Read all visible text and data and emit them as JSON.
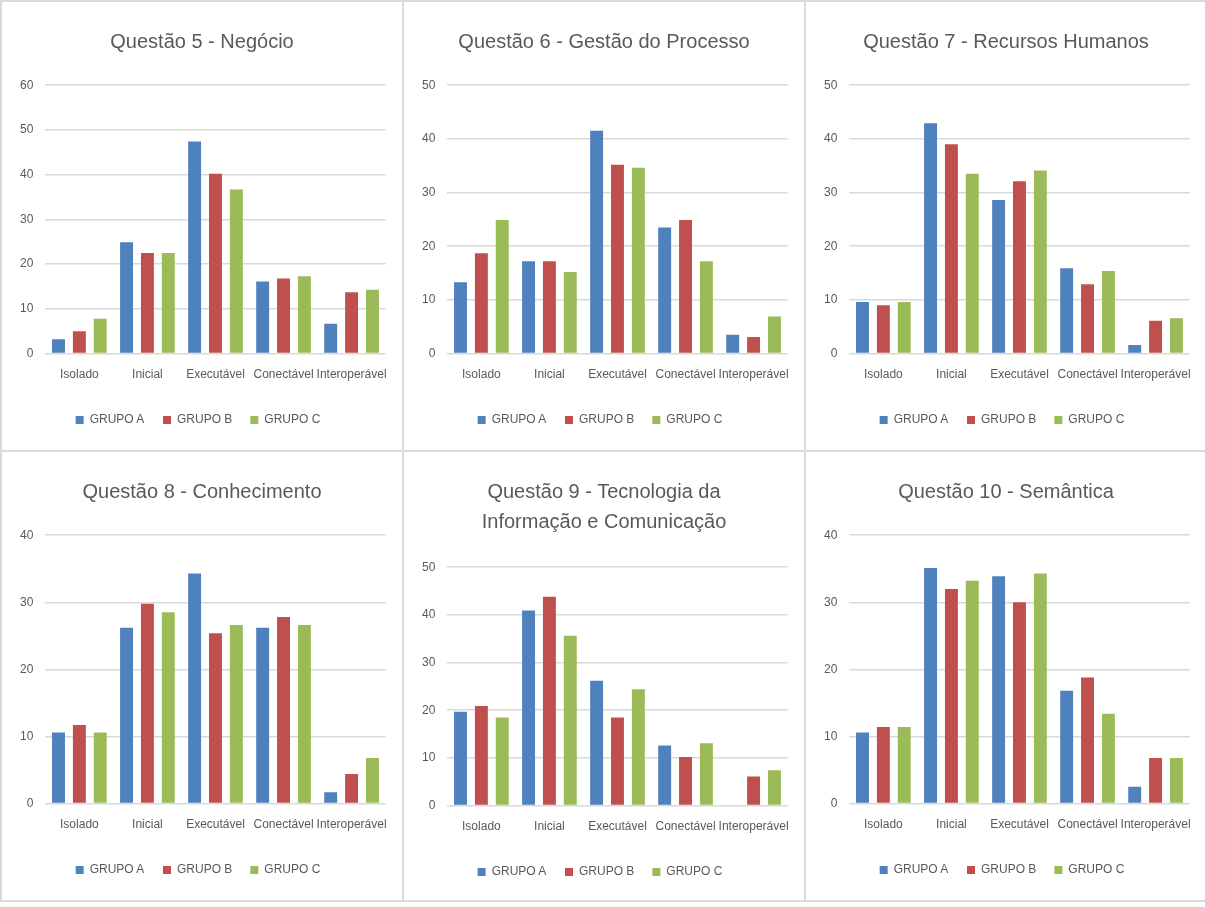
{
  "chart_data": [
    {
      "type": "bar",
      "title": "Questão 5 - Negócio",
      "categories": [
        "Isolado",
        "Inicial",
        "Executável",
        "Conectável",
        "Interoperável"
      ],
      "series": [
        {
          "name": "GRUPO A",
          "color": "#4f81bd",
          "values": [
            3.2,
            24.9,
            47.4,
            16.1,
            6.7
          ]
        },
        {
          "name": "GRUPO B",
          "color": "#c0504d",
          "values": [
            5,
            22.5,
            40.2,
            16.8,
            13.7
          ]
        },
        {
          "name": "GRUPO C",
          "color": "#9bbb59",
          "values": [
            7.8,
            22.5,
            36.7,
            17.3,
            14.3
          ]
        }
      ],
      "ylim": [
        0,
        60
      ],
      "yticks": [
        0,
        10,
        20,
        30,
        40,
        50,
        60
      ],
      "grid": "y",
      "legend": "bottom"
    },
    {
      "type": "bar",
      "title": "Questão 6 - Gestão do Processo",
      "categories": [
        "Isolado",
        "Inicial",
        "Executável",
        "Conectável",
        "Interoperável"
      ],
      "series": [
        {
          "name": "GRUPO A",
          "color": "#4f81bd",
          "values": [
            13.3,
            17.2,
            41.5,
            23.5,
            3.5
          ]
        },
        {
          "name": "GRUPO B",
          "color": "#c0504d",
          "values": [
            18.7,
            17.2,
            35.2,
            24.9,
            3.1
          ]
        },
        {
          "name": "GRUPO C",
          "color": "#9bbb59",
          "values": [
            24.9,
            15.2,
            34.6,
            17.2,
            6.9
          ]
        }
      ],
      "ylim": [
        0,
        50
      ],
      "yticks": [
        0,
        10,
        20,
        30,
        40,
        50
      ],
      "grid": "y",
      "legend": "bottom"
    },
    {
      "type": "bar",
      "title": "Questão 7 - Recursos Humanos",
      "categories": [
        "Isolado",
        "Inicial",
        "Executável",
        "Conectável",
        "Interoperável"
      ],
      "series": [
        {
          "name": "GRUPO A",
          "color": "#4f81bd",
          "values": [
            9.6,
            42.9,
            28.6,
            15.9,
            1.6
          ]
        },
        {
          "name": "GRUPO B",
          "color": "#c0504d",
          "values": [
            9,
            39,
            32.1,
            12.9,
            6.1
          ]
        },
        {
          "name": "GRUPO C",
          "color": "#9bbb59",
          "values": [
            9.6,
            33.5,
            34.1,
            15.4,
            6.6
          ]
        }
      ],
      "ylim": [
        0,
        50
      ],
      "yticks": [
        0,
        10,
        20,
        30,
        40,
        50
      ],
      "grid": "y",
      "legend": "bottom"
    },
    {
      "type": "bar",
      "title": "Questão 8 - Conhecimento",
      "categories": [
        "Isolado",
        "Inicial",
        "Executável",
        "Conectável",
        "Interoperável"
      ],
      "series": [
        {
          "name": "GRUPO A",
          "color": "#4f81bd",
          "values": [
            10.6,
            26.2,
            34.3,
            26.2,
            1.7
          ]
        },
        {
          "name": "GRUPO B",
          "color": "#c0504d",
          "values": [
            11.7,
            29.8,
            25.4,
            27.8,
            4.4
          ]
        },
        {
          "name": "GRUPO C",
          "color": "#9bbb59",
          "values": [
            10.6,
            28.5,
            26.6,
            26.6,
            6.8
          ]
        }
      ],
      "ylim": [
        0,
        40
      ],
      "yticks": [
        0,
        10,
        20,
        30,
        40
      ],
      "grid": "y",
      "legend": "bottom"
    },
    {
      "type": "bar",
      "title": "Questão 9 - Tecnologia da Informação e Comunicação",
      "categories": [
        "Isolado",
        "Inicial",
        "Executável",
        "Conectável",
        "Interoperável"
      ],
      "series": [
        {
          "name": "GRUPO A",
          "color": "#4f81bd",
          "values": [
            19.7,
            40.9,
            26.2,
            12.6,
            0
          ]
        },
        {
          "name": "GRUPO B",
          "color": "#c0504d",
          "values": [
            20.9,
            43.8,
            18.5,
            10.2,
            6.1
          ]
        },
        {
          "name": "GRUPO C",
          "color": "#9bbb59",
          "values": [
            18.5,
            35.6,
            24.4,
            13.1,
            7.4
          ]
        }
      ],
      "ylim": [
        0,
        50
      ],
      "yticks": [
        0,
        10,
        20,
        30,
        40,
        50
      ],
      "grid": "y",
      "legend": "bottom"
    },
    {
      "type": "bar",
      "title": "Questão 10 - Semântica",
      "categories": [
        "Isolado",
        "Inicial",
        "Executável",
        "Conectável",
        "Interoperável"
      ],
      "series": [
        {
          "name": "GRUPO A",
          "color": "#4f81bd",
          "values": [
            10.6,
            35.1,
            33.9,
            16.8,
            2.5
          ]
        },
        {
          "name": "GRUPO B",
          "color": "#c0504d",
          "values": [
            11.4,
            32,
            30,
            18.8,
            6.8
          ]
        },
        {
          "name": "GRUPO C",
          "color": "#9bbb59",
          "values": [
            11.4,
            33.2,
            34.3,
            13.4,
            6.8
          ]
        }
      ],
      "ylim": [
        0,
        40
      ],
      "yticks": [
        0,
        10,
        20,
        30,
        40
      ],
      "grid": "y",
      "legend": "bottom"
    }
  ]
}
